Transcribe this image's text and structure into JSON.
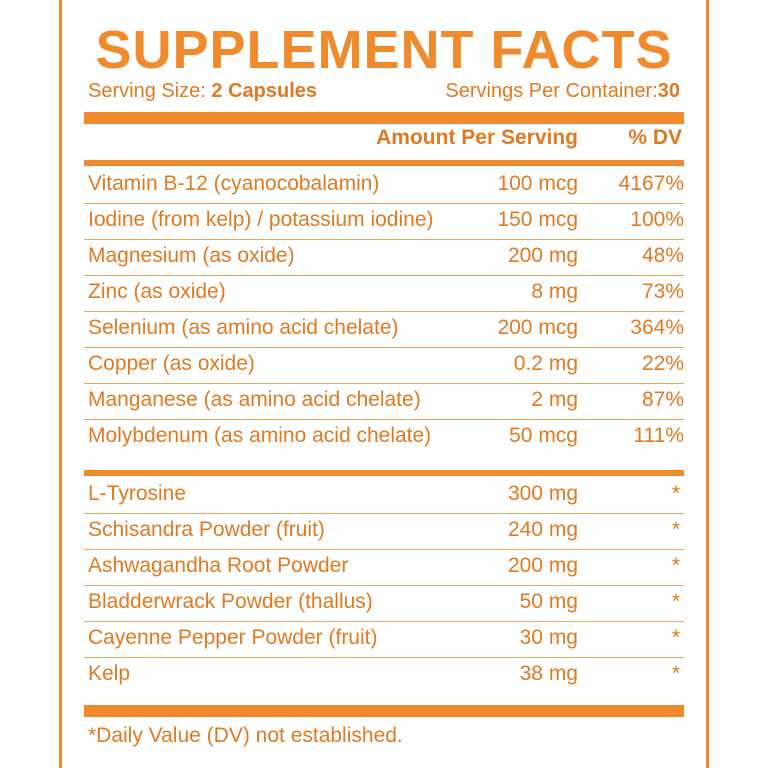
{
  "title": "SUPPLEMENT FACTS",
  "serving": {
    "size_label": "Serving Size:",
    "size_value": "2 Capsules",
    "per_container_label": "Servings Per Container:",
    "per_container_value": "30"
  },
  "header": {
    "amount": "Amount Per Serving",
    "dv": "% DV"
  },
  "vitamins": [
    {
      "name": "Vitamin B-12 (cyanocobalamin)",
      "amount": "100 mcg",
      "dv": "4167%"
    },
    {
      "name": "Iodine (from kelp) / potassium iodine)",
      "amount": "150 mcg",
      "dv": "100%"
    },
    {
      "name": "Magnesium (as oxide)",
      "amount": "200 mg",
      "dv": "48%"
    },
    {
      "name": "Zinc (as oxide)",
      "amount": "8 mg",
      "dv": "73%"
    },
    {
      "name": "Selenium (as amino acid chelate)",
      "amount": "200 mcg",
      "dv": "364%"
    },
    {
      "name": "Copper (as oxide)",
      "amount": "0.2 mg",
      "dv": "22%"
    },
    {
      "name": "Manganese (as amino acid chelate)",
      "amount": "2 mg",
      "dv": "87%"
    },
    {
      "name": "Molybdenum (as amino acid chelate)",
      "amount": "50 mcg",
      "dv": "111%"
    }
  ],
  "others": [
    {
      "name": "L-Tyrosine",
      "amount": "300 mg",
      "dv": "*"
    },
    {
      "name": "Schisandra Powder (fruit)",
      "amount": "240 mg",
      "dv": "*"
    },
    {
      "name": "Ashwagandha Root Powder",
      "amount": "200 mg",
      "dv": "*"
    },
    {
      "name": "Bladderwrack Powder (thallus)",
      "amount": "50 mg",
      "dv": "*"
    },
    {
      "name": "Cayenne Pepper Powder (fruit)",
      "amount": "30 mg",
      "dv": "*"
    },
    {
      "name": "Kelp",
      "amount": "38 mg",
      "dv": "*"
    }
  ],
  "footnote": "*Daily Value (DV) not established.",
  "colors": {
    "accent": "#F08A2C",
    "text": "#E07A22",
    "divider": "#F3A360"
  }
}
